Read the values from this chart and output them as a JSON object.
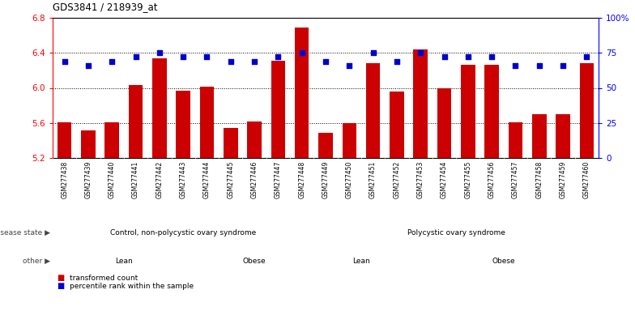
{
  "title": "GDS3841 / 218939_at",
  "samples": [
    "GSM277438",
    "GSM277439",
    "GSM277440",
    "GSM277441",
    "GSM277442",
    "GSM277443",
    "GSM277444",
    "GSM277445",
    "GSM277446",
    "GSM277447",
    "GSM277448",
    "GSM277449",
    "GSM277450",
    "GSM277451",
    "GSM277452",
    "GSM277453",
    "GSM277454",
    "GSM277455",
    "GSM277456",
    "GSM277457",
    "GSM277458",
    "GSM277459",
    "GSM277460"
  ],
  "bar_values": [
    5.61,
    5.51,
    5.61,
    6.03,
    6.34,
    5.97,
    6.01,
    5.54,
    5.62,
    6.31,
    6.69,
    5.49,
    5.6,
    6.28,
    5.96,
    6.44,
    6.0,
    6.26,
    6.26,
    5.61,
    5.7,
    5.7,
    6.28
  ],
  "dot_values": [
    69,
    66,
    69,
    72,
    75,
    72,
    72,
    69,
    69,
    72,
    75,
    69,
    66,
    75,
    69,
    75,
    72,
    72,
    72,
    66,
    66,
    66,
    72
  ],
  "bar_color": "#cc0000",
  "dot_color": "#0000cc",
  "ylim_left": [
    5.2,
    6.8
  ],
  "ylim_right": [
    0,
    100
  ],
  "yticks_left": [
    5.2,
    5.6,
    6.0,
    6.4,
    6.8
  ],
  "yticks_right": [
    0,
    25,
    50,
    75,
    100
  ],
  "ytick_labels_right": [
    "0",
    "25",
    "50",
    "75",
    "100%"
  ],
  "hgrid_lines": [
    5.6,
    6.0,
    6.4
  ],
  "disease_state_groups": [
    {
      "label": "Control, non-polycystic ovary syndrome",
      "start": 0,
      "end": 10,
      "color": "#66dd66"
    },
    {
      "label": "Polycystic ovary syndrome",
      "start": 11,
      "end": 22,
      "color": "#44ee44"
    }
  ],
  "other_groups": [
    {
      "label": "Lean",
      "start": 0,
      "end": 5,
      "color": "#ee66ee"
    },
    {
      "label": "Obese",
      "start": 6,
      "end": 10,
      "color": "#cc44cc"
    },
    {
      "label": "Lean",
      "start": 11,
      "end": 14,
      "color": "#ee66ee"
    },
    {
      "label": "Obese",
      "start": 15,
      "end": 22,
      "color": "#cc44cc"
    }
  ],
  "legend_items": [
    {
      "label": "transformed count",
      "color": "#cc0000"
    },
    {
      "label": "percentile rank within the sample",
      "color": "#0000cc"
    }
  ],
  "xtick_bg_color": "#cccccc",
  "n_samples": 23
}
